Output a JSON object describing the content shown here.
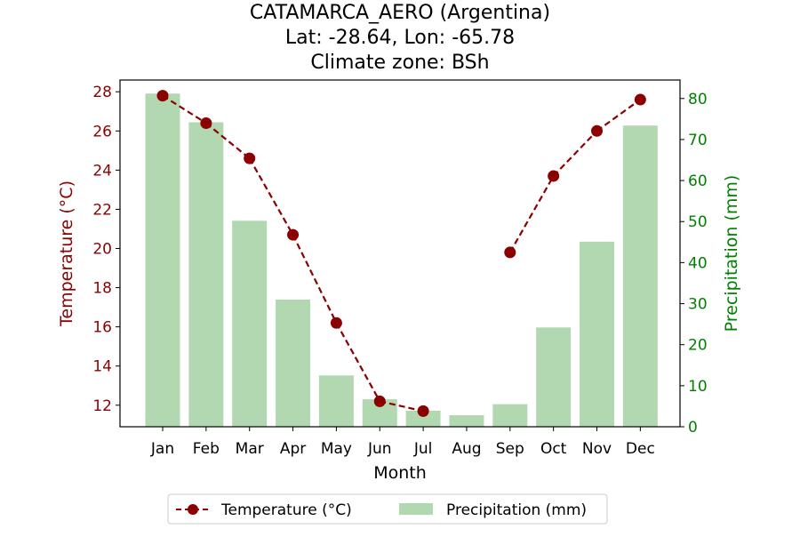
{
  "chart_data": {
    "type": "bar+line",
    "title_lines": [
      "CATAMARCA_AERO (Argentina)",
      "Lat: -28.64, Lon: -65.78",
      "Climate zone: BSh"
    ],
    "xlabel": "Month",
    "ylabel_left": "Temperature (°C)",
    "ylabel_right": "Precipitation (mm)",
    "categories": [
      "Jan",
      "Feb",
      "Mar",
      "Apr",
      "May",
      "Jun",
      "Jul",
      "Aug",
      "Sep",
      "Oct",
      "Nov",
      "Dec"
    ],
    "temperature": {
      "name": "Temperature (°C)",
      "values": [
        27.8,
        26.4,
        24.6,
        20.7,
        16.2,
        12.2,
        11.7,
        null,
        19.8,
        23.7,
        26.0,
        27.6
      ],
      "ylim": [
        10.9,
        28.6
      ],
      "ticks": [
        12,
        14,
        16,
        18,
        20,
        22,
        24,
        26,
        28
      ]
    },
    "precipitation": {
      "name": "Precipitation (mm)",
      "values": [
        81.2,
        74.2,
        50.2,
        31.0,
        12.5,
        6.7,
        3.9,
        2.8,
        5.5,
        24.2,
        45.1,
        73.4
      ],
      "ylim": [
        0,
        84.5
      ],
      "ticks": [
        0,
        10,
        20,
        30,
        40,
        50,
        60,
        70,
        80
      ]
    },
    "legend_position": "bottom-center",
    "colors": {
      "temperature": "#8b0000",
      "precipitation": "#b2d8b2",
      "precip_axis": "#008000"
    }
  }
}
